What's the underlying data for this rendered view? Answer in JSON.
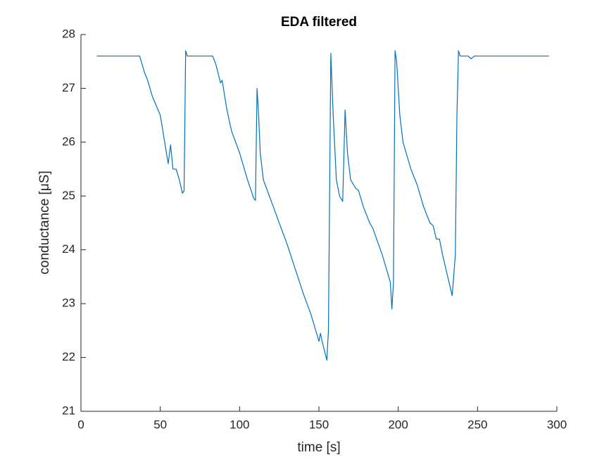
{
  "chart_data": {
    "type": "line",
    "title": "EDA filtered",
    "x_label": "time [s]",
    "y_label": "conductance [μS]",
    "x": [
      10,
      37,
      40,
      42,
      45,
      50,
      55,
      56.5,
      58,
      60,
      62,
      64,
      65,
      66,
      67,
      83,
      85,
      88,
      89,
      92,
      95,
      100,
      105,
      109,
      110,
      111,
      112,
      113,
      115,
      120,
      130,
      140,
      145,
      150,
      151,
      152,
      155,
      156,
      157.5,
      159,
      161,
      163,
      165,
      166.5,
      168,
      170,
      173,
      175,
      178,
      182,
      184,
      190,
      195,
      196,
      197,
      198,
      199,
      201,
      203,
      208,
      212,
      216,
      220,
      222,
      224,
      226,
      228,
      232,
      234,
      236,
      237,
      238,
      239,
      244,
      246,
      248,
      295
    ],
    "values": [
      27.6,
      27.6,
      27.3,
      27.15,
      26.85,
      26.5,
      25.6,
      25.95,
      25.5,
      25.5,
      25.3,
      25.05,
      25.1,
      27.7,
      27.6,
      27.6,
      27.45,
      27.1,
      27.15,
      26.6,
      26.2,
      25.8,
      25.3,
      24.95,
      24.92,
      27.0,
      26.5,
      25.8,
      25.3,
      24.9,
      24.1,
      23.2,
      22.8,
      22.3,
      22.45,
      22.3,
      21.95,
      22.5,
      27.65,
      26.5,
      25.3,
      25.0,
      24.9,
      26.6,
      25.8,
      25.3,
      25.15,
      25.1,
      24.8,
      24.5,
      24.4,
      23.9,
      23.4,
      22.9,
      23.4,
      27.7,
      27.5,
      26.5,
      26.0,
      25.5,
      25.2,
      24.8,
      24.5,
      24.45,
      24.2,
      24.2,
      23.9,
      23.4,
      23.15,
      23.9,
      26.5,
      27.7,
      27.6,
      27.6,
      27.55,
      27.6,
      27.6
    ],
    "color": "#0072bd",
    "xlim": [
      0,
      300
    ],
    "xticks": [
      0,
      50,
      100,
      150,
      200,
      250,
      300
    ],
    "ylim": [
      21,
      28
    ],
    "yticks": [
      21,
      22,
      23,
      24,
      25,
      26,
      27,
      28
    ]
  }
}
